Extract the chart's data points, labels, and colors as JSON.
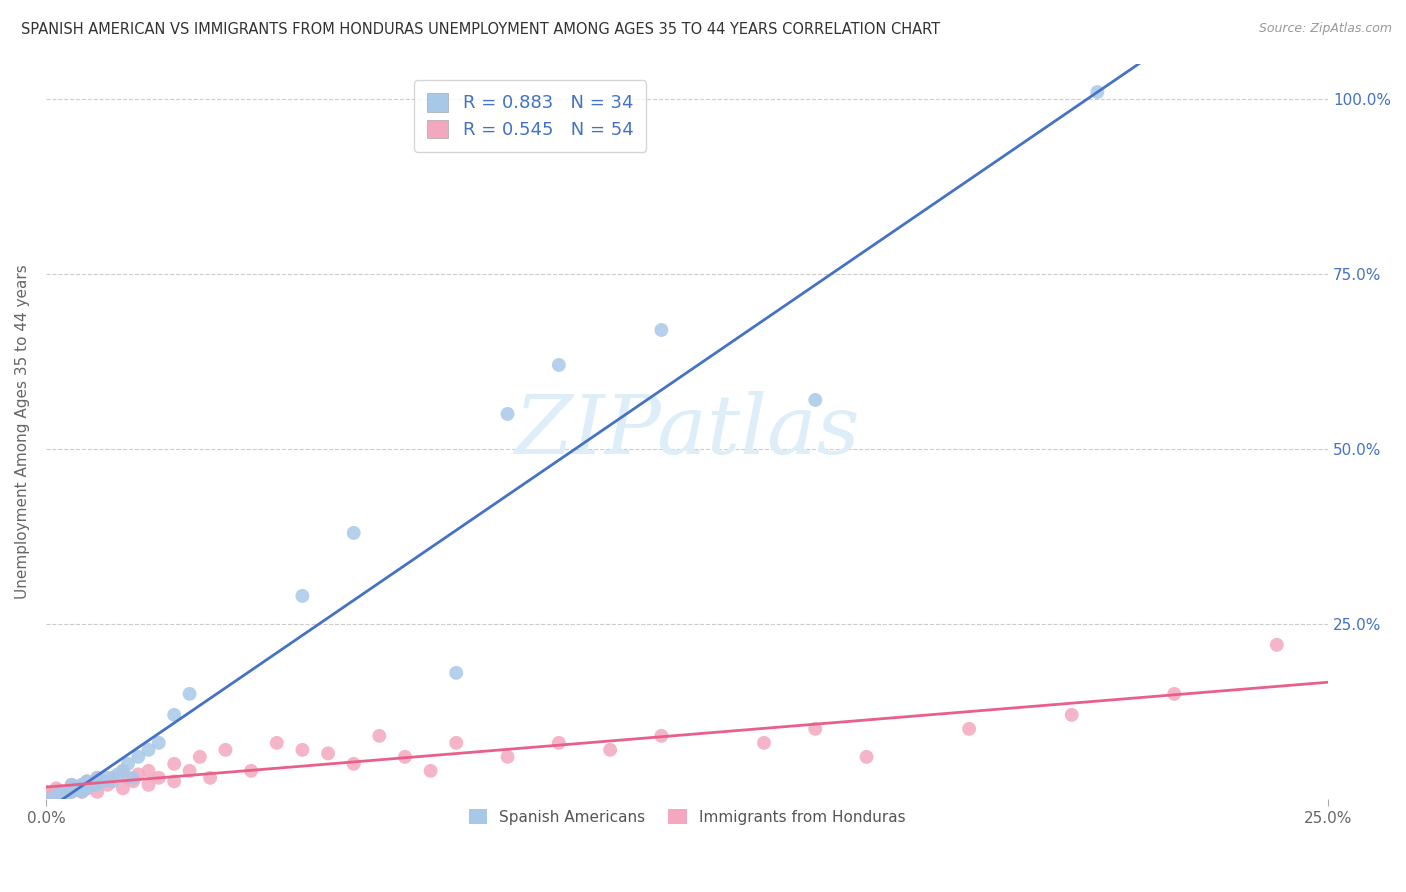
{
  "title": "SPANISH AMERICAN VS IMMIGRANTS FROM HONDURAS UNEMPLOYMENT AMONG AGES 35 TO 44 YEARS CORRELATION CHART",
  "source": "Source: ZipAtlas.com",
  "ylabel": "Unemployment Among Ages 35 to 44 years",
  "xlim": [
    0.0,
    0.25
  ],
  "ylim": [
    0.0,
    1.05
  ],
  "xtick_labels": [
    "0.0%",
    "25.0%"
  ],
  "ytick_labels": [
    "25.0%",
    "50.0%",
    "75.0%",
    "100.0%"
  ],
  "ytick_values": [
    0.25,
    0.5,
    0.75,
    1.0
  ],
  "xtick_values": [
    0.0,
    0.25
  ],
  "series1_label": "Spanish Americans",
  "series2_label": "Immigrants from Honduras",
  "series1_R": 0.883,
  "series1_N": 34,
  "series2_R": 0.545,
  "series2_N": 54,
  "series1_color": "#a8c8e8",
  "series2_color": "#f4a8c0",
  "series1_line_color": "#4472c4",
  "series2_line_color": "#e8608a",
  "background_color": "#ffffff",
  "watermark_text": "ZIPatlas",
  "watermark_color": "#ddeef8",
  "grid_color": "#cccccc",
  "title_fontsize": 10.5,
  "legend_R_N_color": "#4472c4",
  "series1_x": [
    0.0,
    0.002,
    0.003,
    0.004,
    0.005,
    0.005,
    0.006,
    0.007,
    0.007,
    0.008,
    0.008,
    0.009,
    0.01,
    0.01,
    0.011,
    0.012,
    0.013,
    0.014,
    0.015,
    0.016,
    0.017,
    0.018,
    0.02,
    0.022,
    0.025,
    0.028,
    0.05,
    0.06,
    0.08,
    0.09,
    0.1,
    0.12,
    0.15,
    0.205
  ],
  "series1_y": [
    0.0,
    0.005,
    0.01,
    0.005,
    0.02,
    0.01,
    0.015,
    0.02,
    0.01,
    0.025,
    0.015,
    0.02,
    0.03,
    0.02,
    0.025,
    0.03,
    0.025,
    0.035,
    0.04,
    0.05,
    0.03,
    0.06,
    0.07,
    0.08,
    0.12,
    0.15,
    0.29,
    0.38,
    0.18,
    0.55,
    0.62,
    0.67,
    0.57,
    1.01
  ],
  "series2_x": [
    0.0,
    0.0,
    0.001,
    0.002,
    0.002,
    0.003,
    0.004,
    0.005,
    0.005,
    0.006,
    0.007,
    0.007,
    0.008,
    0.008,
    0.009,
    0.01,
    0.01,
    0.011,
    0.012,
    0.013,
    0.015,
    0.015,
    0.016,
    0.017,
    0.018,
    0.02,
    0.02,
    0.022,
    0.025,
    0.025,
    0.028,
    0.03,
    0.032,
    0.035,
    0.04,
    0.045,
    0.05,
    0.055,
    0.06,
    0.065,
    0.07,
    0.075,
    0.08,
    0.09,
    0.1,
    0.11,
    0.12,
    0.14,
    0.15,
    0.16,
    0.18,
    0.2,
    0.22,
    0.24
  ],
  "series2_y": [
    0.0,
    0.01,
    0.005,
    0.008,
    0.015,
    0.01,
    0.005,
    0.02,
    0.01,
    0.015,
    0.02,
    0.01,
    0.015,
    0.025,
    0.02,
    0.03,
    0.01,
    0.025,
    0.02,
    0.03,
    0.04,
    0.015,
    0.03,
    0.025,
    0.035,
    0.04,
    0.02,
    0.03,
    0.05,
    0.025,
    0.04,
    0.06,
    0.03,
    0.07,
    0.04,
    0.08,
    0.07,
    0.065,
    0.05,
    0.09,
    0.06,
    0.04,
    0.08,
    0.06,
    0.08,
    0.07,
    0.09,
    0.08,
    0.1,
    0.06,
    0.1,
    0.12,
    0.15,
    0.22
  ]
}
